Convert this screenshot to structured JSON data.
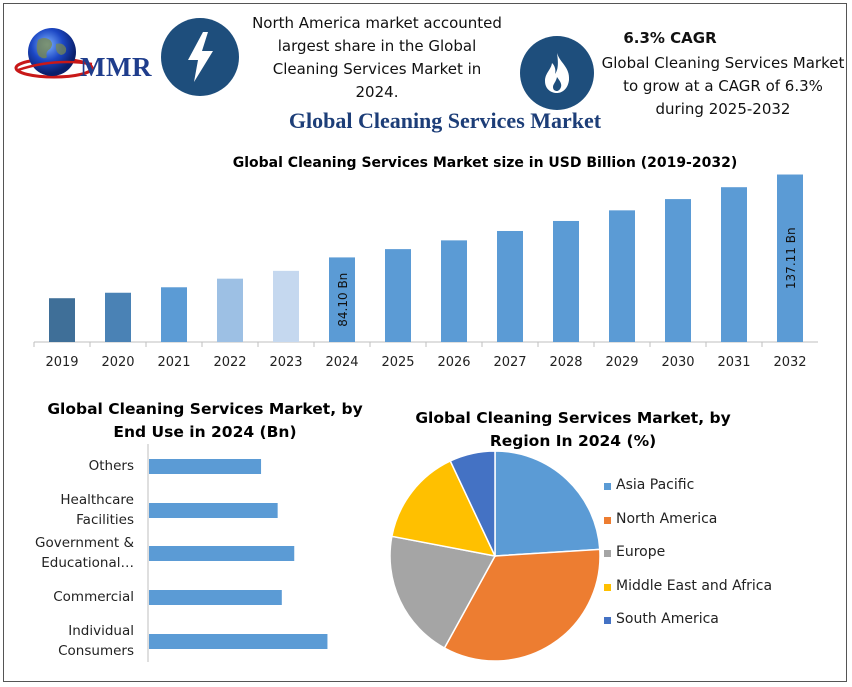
{
  "header": {
    "logo_text": "MMR",
    "info_left": "North America market accounted largest share in the Global Cleaning Services Market in 2024.",
    "cagr_title": "6.3% CAGR",
    "info_right": "Global Cleaning Services Market to grow at a CAGR of 6.3% during 2025-2032",
    "icons": [
      "globe-icon",
      "lightning-icon",
      "flame-icon"
    ],
    "main_title": "Global Cleaning Services Market"
  },
  "chart_data": [
    {
      "type": "bar",
      "title": "Global Cleaning Services Market size in USD Billion (2019-2032)",
      "categories": [
        "2019",
        "2020",
        "2021",
        "2022",
        "2023",
        "2024",
        "2025",
        "2026",
        "2027",
        "2028",
        "2029",
        "2030",
        "2031",
        "2032"
      ],
      "values": [
        58.0,
        61.5,
        65.0,
        70.5,
        75.5,
        84.1,
        89.4,
        95.0,
        101.0,
        107.4,
        114.2,
        121.4,
        129.0,
        137.11
      ],
      "data_labels": {
        "2024": "84.10 Bn",
        "2032": "137.11 Bn"
      },
      "colors": [
        "#3f6f98",
        "#4a82b5",
        "#5b9bd5",
        "#9dc0e4",
        "#c5d8ef",
        "#5b9bd5",
        "#5b9bd5",
        "#5b9bd5",
        "#5b9bd5",
        "#5b9bd5",
        "#5b9bd5",
        "#5b9bd5",
        "#5b9bd5",
        "#5b9bd5"
      ],
      "ylim": [
        30,
        140
      ],
      "grid": false
    },
    {
      "type": "bar",
      "orientation": "horizontal",
      "title": "Global Cleaning Services Market, by End Use in 2024 (Bn)",
      "categories": [
        "Others",
        "Healthcare Facilities",
        "Government & Educational…",
        "Commercial",
        "Individual Consumers"
      ],
      "values": [
        13.5,
        15.5,
        17.5,
        16.0,
        21.5
      ],
      "xlim": [
        0,
        30
      ],
      "color": "#5b9bd5"
    },
    {
      "type": "pie",
      "title": "Global Cleaning Services Market, by Region In 2024 (%)",
      "labels": [
        "Asia Pacific",
        "North America",
        "Europe",
        "Middle East and Africa",
        "South America"
      ],
      "values": [
        24,
        34,
        20,
        15,
        7
      ],
      "colors": [
        "#5b9bd5",
        "#ed7d31",
        "#a5a5a5",
        "#ffc000",
        "#4472c4"
      ],
      "legend_position": "right"
    }
  ]
}
